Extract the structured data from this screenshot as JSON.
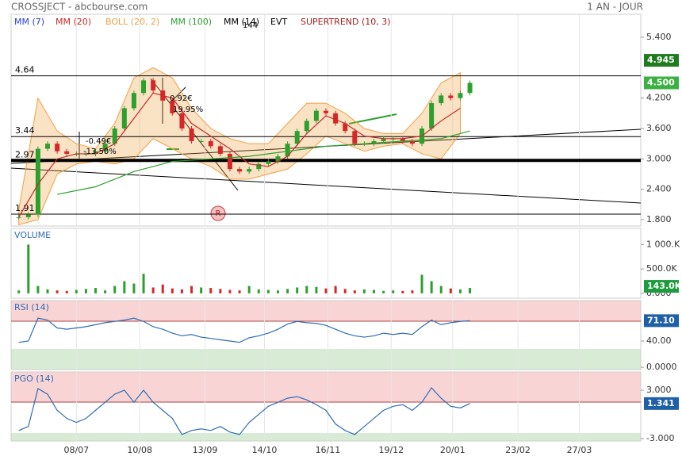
{
  "header": {
    "title": "CROSSJECT - abcbourse.com",
    "period": "1 AN - JOUR"
  },
  "x_axis": {
    "xlim": [
      0,
      328
    ],
    "xticks": [
      {
        "value": 34,
        "label": "08/07"
      },
      {
        "value": 67,
        "label": "10/08"
      },
      {
        "value": 101,
        "label": "13/09"
      },
      {
        "value": 132,
        "label": "14/10"
      },
      {
        "value": 165,
        "label": "16/11"
      },
      {
        "value": 198,
        "label": "19/12"
      },
      {
        "value": 230,
        "label": "20/01"
      },
      {
        "value": 264,
        "label": "23/02"
      },
      {
        "value": 296,
        "label": "27/03"
      }
    ]
  },
  "chart_data": [
    {
      "type": "candlestick",
      "x": [
        4,
        9,
        14,
        19,
        24,
        29,
        34,
        39,
        44,
        49,
        54,
        59,
        64,
        69,
        74,
        79,
        84,
        89,
        94,
        99,
        104,
        109,
        114,
        119,
        124,
        129,
        134,
        139,
        144,
        149,
        154,
        159,
        164,
        169,
        174,
        179,
        184,
        189,
        194,
        199,
        204,
        209,
        214,
        219,
        224,
        229,
        234,
        239
      ],
      "values": [
        1.85,
        1.9,
        3.2,
        3.3,
        3.15,
        3.1,
        3.1,
        3.1,
        3.15,
        3.3,
        3.6,
        4.0,
        4.3,
        4.55,
        4.35,
        4.15,
        3.9,
        3.6,
        3.35,
        3.35,
        3.25,
        3.1,
        2.8,
        2.75,
        2.8,
        2.9,
        2.95,
        3.05,
        3.3,
        3.55,
        3.75,
        3.95,
        3.9,
        3.7,
        3.55,
        3.3,
        3.3,
        3.35,
        3.4,
        3.4,
        3.35,
        3.3,
        3.6,
        4.1,
        4.25,
        4.2,
        4.3,
        4.5
      ],
      "up_color": "#2ca02c",
      "down_color": "#d62728",
      "series": [
        {
          "name": "MM (7)",
          "color": "#2a3fd6"
        },
        {
          "name": "MM (20)",
          "color": "#c62828",
          "x": [
            4,
            14,
            24,
            34,
            44,
            54,
            64,
            74,
            84,
            94,
            104,
            114,
            124,
            134,
            144,
            154,
            164,
            174,
            184,
            194,
            204,
            214,
            224,
            234
          ],
          "values": [
            1.85,
            2.5,
            3.0,
            3.1,
            3.1,
            3.3,
            3.8,
            4.3,
            4.2,
            3.7,
            3.45,
            3.2,
            2.9,
            2.85,
            3.05,
            3.5,
            3.85,
            3.7,
            3.45,
            3.4,
            3.4,
            3.45,
            3.75,
            4.0
          ]
        },
        {
          "name": "BOLL (20, 2)",
          "color": "#f0a040",
          "x": [
            4,
            14,
            24,
            34,
            44,
            54,
            64,
            74,
            84,
            94,
            104,
            114,
            124,
            134,
            144,
            154,
            164,
            174,
            184,
            194,
            204,
            214,
            224,
            234
          ],
          "values": [
            2.0,
            4.2,
            3.55,
            3.3,
            3.2,
            3.7,
            4.6,
            4.8,
            4.6,
            4.0,
            3.6,
            3.4,
            3.3,
            3.3,
            3.7,
            4.1,
            4.1,
            3.9,
            3.6,
            3.5,
            3.5,
            3.9,
            4.5,
            4.7
          ],
          "lower": [
            1.7,
            1.8,
            2.7,
            2.9,
            2.95,
            2.9,
            3.0,
            3.4,
            3.2,
            3.0,
            2.85,
            2.6,
            2.6,
            2.7,
            2.8,
            3.1,
            3.45,
            3.3,
            3.15,
            3.25,
            3.3,
            3.1,
            3.0,
            3.5
          ]
        },
        {
          "name": "MM (100)",
          "color": "#2ca02c",
          "x": [
            24,
            44,
            64,
            84,
            104,
            124,
            144,
            164,
            184,
            204,
            224,
            239
          ],
          "values": [
            2.3,
            2.45,
            2.75,
            2.95,
            3.0,
            3.05,
            3.15,
            3.25,
            3.3,
            3.35,
            3.4,
            3.55
          ]
        },
        {
          "name": "MM (14)",
          "color": "#000000"
        },
        {
          "name": "EVT",
          "color": "#000000"
        },
        {
          "name": "SUPERTREND (10, 3)",
          "color": "#a02020"
        }
      ],
      "levels": [
        4.64,
        3.44,
        2.97,
        1.91
      ],
      "annotations": [
        "0.92€",
        "19.95%",
        "-0.49€",
        "-13.50%",
        "144"
      ],
      "marker": "R",
      "ylim": [
        1.675,
        5.854
      ],
      "yticks": [
        {
          "value": 1.8,
          "label": "1.800"
        },
        {
          "value": 2.4,
          "label": "2.400"
        },
        {
          "value": 3.0,
          "label": "3.000"
        },
        {
          "value": 3.6,
          "label": "3.600"
        },
        {
          "value": 4.2,
          "label": "4.200"
        },
        {
          "value": 5.4,
          "label": "5.400"
        }
      ],
      "badges": [
        {
          "value": 4.945,
          "color": "#1e7b1e"
        },
        {
          "value": {
            "value": 4.5,
            "label": "4.500"
          },
          "color": "#3cb043"
        }
      ]
    },
    {
      "type": "bar",
      "title": "VOLUME",
      "values": [
        60000,
        1000000,
        150000,
        80000,
        60000,
        50000,
        70000,
        90000,
        110000,
        60000,
        150000,
        250000,
        200000,
        400000,
        120000,
        180000,
        100000,
        80000,
        150000,
        120000,
        110000,
        90000,
        70000,
        60000,
        150000,
        80000,
        70000,
        60000,
        90000,
        120000,
        150000,
        130000,
        100000,
        150000,
        90000,
        60000,
        80000,
        70000,
        50000,
        60000,
        50000,
        60000,
        380000,
        250000,
        150000,
        100000,
        80000,
        110000
      ],
      "ylim": [
        -100000,
        1330000
      ],
      "yticks": [
        {
          "value": 0,
          "label": "0.000"
        },
        {
          "value": 500000,
          "label": "500.0K"
        },
        {
          "value": 1000000,
          "label": "1 000.K"
        }
      ],
      "badges": [
        {
          "value": {
            "value": 143000,
            "label": "143.0K"
          },
          "color": "#1e9b3e"
        }
      ]
    },
    {
      "type": "line",
      "title": "RSI (14)",
      "color": "#2f6db5",
      "values": [
        38,
        40,
        75,
        72,
        60,
        58,
        60,
        62,
        65,
        68,
        70,
        72,
        75,
        70,
        62,
        58,
        52,
        48,
        50,
        46,
        44,
        42,
        40,
        38,
        45,
        48,
        52,
        58,
        66,
        70,
        68,
        67,
        64,
        58,
        52,
        48,
        46,
        48,
        52,
        50,
        52,
        50,
        62,
        72,
        65,
        68,
        70,
        71.1
      ],
      "ylim": [
        -3.6,
        101.8
      ],
      "yticks": [
        {
          "value": 0,
          "label": "0.0000"
        },
        {
          "value": 40,
          "label": "40.00"
        }
      ],
      "badges": [
        {
          "value": {
            "value": 71.1,
            "label": "71.10"
          },
          "color": "#1f5fa8"
        }
      ]
    },
    {
      "type": "line",
      "title": "PGO (14)",
      "color": "#2f6db5",
      "values": [
        -2,
        -1.5,
        3.2,
        2.5,
        0.5,
        -0.5,
        -1,
        -0.5,
        0.5,
        1.5,
        2.5,
        3,
        1.5,
        3,
        1.5,
        0.5,
        -0.5,
        -2.5,
        -2,
        -1.8,
        -2,
        -1.5,
        -2.2,
        -2.5,
        -1,
        0,
        1,
        1.5,
        2,
        2.2,
        1.8,
        1.2,
        0.5,
        -1.2,
        -2,
        -2.5,
        -1.5,
        -0.5,
        0.5,
        1,
        1.2,
        0.5,
        1.5,
        3.3,
        2,
        1,
        0.8,
        1.341
      ],
      "ylim": [
        -3.3,
        5.26
      ],
      "yticks": [
        {
          "value": -3,
          "label": "-3.000"
        },
        {
          "value": 3,
          "label": "3.000"
        }
      ],
      "badges": [
        {
          "value": 1.341,
          "color": "#1f5fa8"
        }
      ]
    }
  ]
}
